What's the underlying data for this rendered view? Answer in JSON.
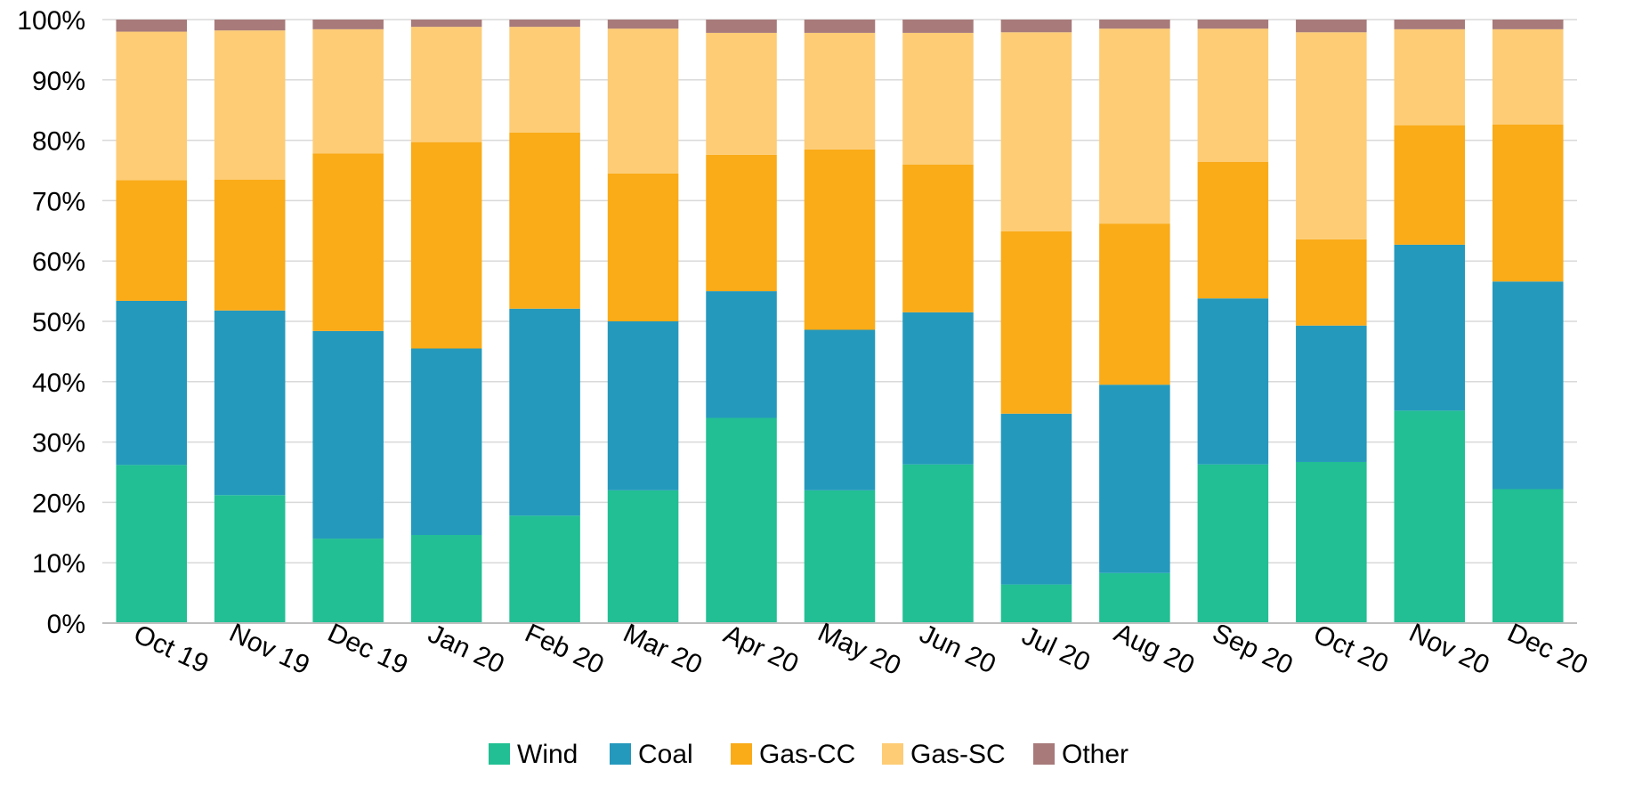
{
  "chart_data": {
    "type": "bar",
    "stacked": true,
    "percent": true,
    "categories": [
      "Oct 19",
      "Nov 19",
      "Dec 19",
      "Jan 20",
      "Feb 20",
      "Mar 20",
      "Apr 20",
      "May 20",
      "Jun 20",
      "Jul 20",
      "Aug 20",
      "Sep 20",
      "Oct 20",
      "Nov 20",
      "Dec 20"
    ],
    "series": [
      {
        "name": "Wind",
        "color": "#21BF93",
        "values": [
          26.2,
          21.2,
          14.0,
          14.6,
          17.8,
          22.0,
          34.0,
          22.0,
          26.3,
          6.4,
          8.3,
          26.3,
          26.7,
          35.2,
          22.2
        ]
      },
      {
        "name": "Coal",
        "color": "#2499BC",
        "values": [
          27.2,
          30.6,
          34.4,
          30.9,
          34.3,
          28.0,
          21.0,
          26.6,
          25.2,
          28.3,
          31.2,
          27.5,
          22.6,
          27.5,
          34.4
        ]
      },
      {
        "name": "Gas-CC",
        "color": "#FAAB18",
        "values": [
          20.0,
          21.7,
          29.4,
          34.2,
          29.2,
          24.5,
          22.6,
          29.9,
          24.5,
          30.2,
          26.7,
          22.6,
          14.3,
          19.8,
          26.0
        ]
      },
      {
        "name": "Gas-SC",
        "color": "#FDCC75",
        "values": [
          24.6,
          24.7,
          20.6,
          19.1,
          17.5,
          24.0,
          20.2,
          19.3,
          21.8,
          33.0,
          32.3,
          22.1,
          34.3,
          15.9,
          15.8
        ]
      },
      {
        "name": "Other",
        "color": "#A87A7A",
        "values": [
          2.0,
          1.8,
          1.6,
          1.2,
          1.2,
          1.5,
          2.2,
          2.2,
          2.2,
          2.1,
          1.5,
          1.5,
          2.1,
          1.6,
          1.6
        ]
      }
    ],
    "y_tick_labels": [
      "0%",
      "10%",
      "20%",
      "30%",
      "40%",
      "50%",
      "60%",
      "70%",
      "80%",
      "90%",
      "100%"
    ],
    "ylim": [
      0,
      100
    ],
    "grid": true,
    "legend_position": "bottom",
    "title": "",
    "xlabel": "",
    "ylabel": ""
  }
}
